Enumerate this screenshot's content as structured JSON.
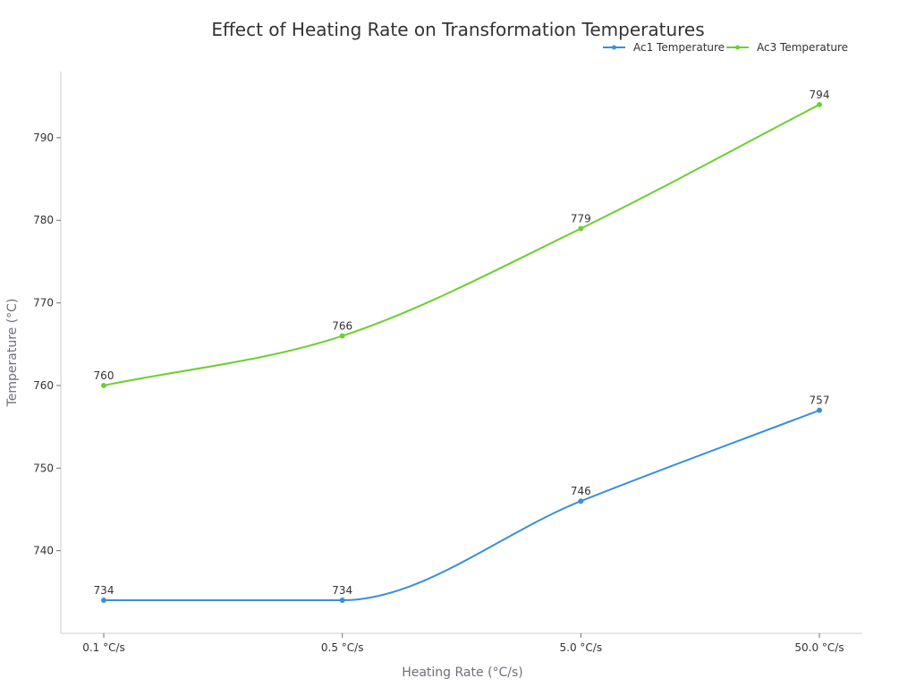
{
  "chart_data": {
    "type": "line",
    "title": "Effect of Heating Rate on Transformation Temperatures",
    "xlabel": "Heating Rate (°C/s)",
    "ylabel": "Temperature (°C)",
    "categories": [
      "0.1 °C/s",
      "0.5 °C/s",
      "5.0 °C/s",
      "50.0 °C/s"
    ],
    "ylim": [
      730,
      798
    ],
    "yticks": [
      740,
      750,
      760,
      770,
      780,
      790
    ],
    "grid": false,
    "legend": "top-right",
    "smooth": true,
    "series": [
      {
        "name": "Ac1 Temperature",
        "color": "#3a8fd9",
        "values": [
          734,
          734,
          746,
          757
        ]
      },
      {
        "name": "Ac3 Temperature",
        "color": "#6ccf2f",
        "values": [
          760,
          766,
          779,
          794
        ]
      }
    ]
  }
}
